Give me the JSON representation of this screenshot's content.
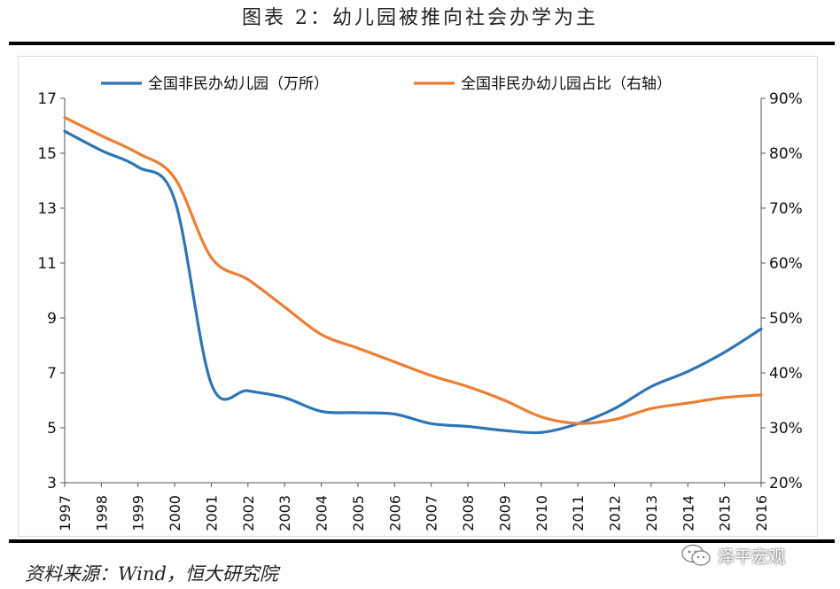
{
  "figure": {
    "title": "图表 2：幼儿园被推向社会办学为主",
    "source": "资料来源：Wind，恒大研究院",
    "watermark": "泽平宏观",
    "watermark_icon": "wechat-icon"
  },
  "chart_data": {
    "type": "line",
    "x": [
      "1997",
      "1998",
      "1999",
      "2000",
      "2001",
      "2002",
      "2003",
      "2004",
      "2005",
      "2006",
      "2007",
      "2008",
      "2009",
      "2010",
      "2011",
      "2012",
      "2013",
      "2014",
      "2015",
      "2016"
    ],
    "x_tick_rotation": "vertical",
    "legend_position": "top",
    "grid": false,
    "left_axis": {
      "ylim": [
        3,
        17
      ],
      "ticks": [
        "3",
        "5",
        "7",
        "9",
        "11",
        "13",
        "15",
        "17"
      ]
    },
    "right_axis": {
      "ylim": [
        20,
        90
      ],
      "ticks": [
        "20%",
        "30%",
        "40%",
        "50%",
        "60%",
        "70%",
        "80%",
        "90%"
      ]
    },
    "series": [
      {
        "name": "全国非民办幼儿园（万所）",
        "axis": "left",
        "color": "#2E75B6",
        "values": [
          15.8,
          15.1,
          14.5,
          13.3,
          6.6,
          6.35,
          6.1,
          5.6,
          5.55,
          5.5,
          5.15,
          5.05,
          4.9,
          4.83,
          5.15,
          5.7,
          6.5,
          7.05,
          7.75,
          8.6
        ]
      },
      {
        "name": "全国非民办幼儿园占比（右轴）",
        "axis": "right",
        "color": "#ED7D31",
        "values": [
          86.5,
          83.2,
          80.0,
          75.5,
          61.0,
          57.0,
          52.0,
          47.0,
          44.5,
          42.0,
          39.5,
          37.5,
          35.0,
          32.0,
          30.8,
          31.5,
          33.5,
          34.5,
          35.5,
          36.0
        ]
      }
    ]
  }
}
